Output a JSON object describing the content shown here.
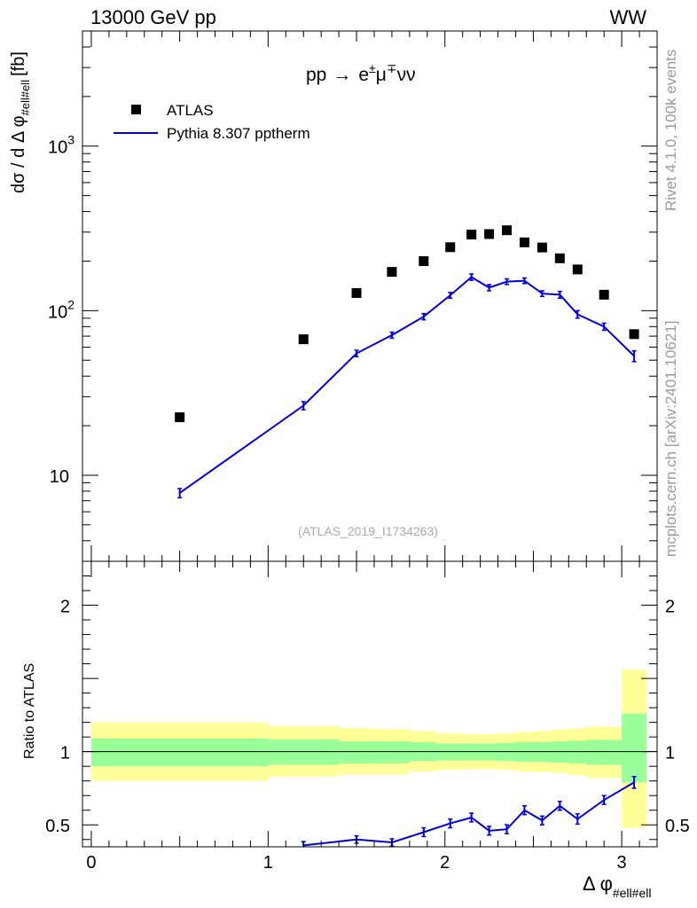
{
  "header": {
    "energy": "13000 GeV pp",
    "process_tag": "WW"
  },
  "side_text": {
    "rivet": "Rivet 4.1.0,  100k events",
    "mcplots": "mcplots.cern.ch [arXiv:2401.10621]"
  },
  "chart_data": [
    {
      "type": "scatter",
      "title": "pp → e±μ∓νν",
      "title_parts": {
        "lhs": "pp",
        "arrow": "→",
        "e": "e",
        "pm": "±",
        "mu": "μ",
        "mp": "∓",
        "nunu": "νν"
      },
      "ylabel": "dσ / d Δ φ",
      "ylabel_sub": "#ell#ell",
      "ylabel_unit": "[fb]",
      "yscale": "log",
      "ylim": [
        3,
        5000
      ],
      "xlim": [
        -0.05,
        3.2
      ],
      "yticks": [
        {
          "value": 10,
          "label": "10"
        },
        {
          "value": 100,
          "label": "10",
          "exp": "2"
        },
        {
          "value": 1000,
          "label": "10",
          "exp": "3"
        }
      ],
      "watermark": "(ATLAS_2019_I1734263)",
      "series": [
        {
          "name": "ATLAS",
          "style": "markers",
          "color": "#000000",
          "x": [
            0.5,
            1.2,
            1.5,
            1.7,
            1.88,
            2.03,
            2.15,
            2.25,
            2.35,
            2.45,
            2.55,
            2.65,
            2.75,
            2.9,
            3.07
          ],
          "values": [
            22.5,
            67,
            128,
            172,
            200,
            243,
            290,
            292,
            308,
            260,
            242,
            208,
            178,
            125,
            72
          ]
        },
        {
          "name": "Pythia 8.307 pptherm",
          "style": "line",
          "color": "#0000dd",
          "x": [
            0.5,
            1.2,
            1.5,
            1.7,
            1.88,
            2.03,
            2.15,
            2.25,
            2.35,
            2.45,
            2.55,
            2.65,
            2.75,
            2.9,
            3.07
          ],
          "values": [
            7.8,
            26.5,
            55,
            71,
            92,
            124,
            160,
            138,
            150,
            152,
            127,
            125,
            95,
            80,
            53
          ],
          "errors": [
            0.5,
            1.5,
            2.5,
            3,
            4,
            5,
            7,
            6,
            6,
            6,
            5,
            6,
            5,
            4,
            4
          ]
        }
      ]
    },
    {
      "type": "line",
      "ylabel": "Ratio to ATLAS",
      "xlabel": "Δ φ",
      "xlabel_sub": "#ell#ell",
      "ylim": [
        0.35,
        2.3
      ],
      "xlim": [
        -0.05,
        3.2
      ],
      "reference": 1,
      "yticks": [
        {
          "value": 0.5,
          "label": "0.5"
        },
        {
          "value": 1,
          "label": "1"
        },
        {
          "value": 2,
          "label": "2"
        }
      ],
      "xticks": [
        {
          "value": 0,
          "label": "0"
        },
        {
          "value": 1,
          "label": "1"
        },
        {
          "value": 2,
          "label": "2"
        },
        {
          "value": 3,
          "label": "3"
        }
      ],
      "uncertainty_bands": [
        {
          "name": "1-sigma",
          "color": "#99ff99",
          "bins": [
            [
              0,
              1,
              0.9,
              1.09
            ],
            [
              1,
              1.4,
              0.91,
              1.085
            ],
            [
              1.4,
              1.6,
              0.92,
              1.07
            ],
            [
              1.6,
              1.8,
              0.92,
              1.07
            ],
            [
              1.8,
              1.95,
              0.935,
              1.065
            ],
            [
              1.95,
              2.1,
              0.94,
              1.055
            ],
            [
              2.1,
              2.2,
              0.94,
              1.055
            ],
            [
              2.2,
              2.3,
              0.94,
              1.055
            ],
            [
              2.3,
              2.4,
              0.935,
              1.06
            ],
            [
              2.4,
              2.5,
              0.93,
              1.065
            ],
            [
              2.5,
              2.6,
              0.93,
              1.065
            ],
            [
              2.6,
              2.7,
              0.925,
              1.07
            ],
            [
              2.7,
              2.8,
              0.92,
              1.075
            ],
            [
              2.8,
              3.0,
              0.91,
              1.08
            ],
            [
              3.0,
              3.14,
              0.79,
              1.26
            ]
          ]
        },
        {
          "name": "2-sigma",
          "color": "#ffff99",
          "bins": [
            [
              0,
              1,
              0.8,
              1.2
            ],
            [
              1,
              1.4,
              0.83,
              1.175
            ],
            [
              1.4,
              1.6,
              0.845,
              1.16
            ],
            [
              1.6,
              1.8,
              0.845,
              1.155
            ],
            [
              1.8,
              1.95,
              0.865,
              1.14
            ],
            [
              1.95,
              2.1,
              0.875,
              1.125
            ],
            [
              2.1,
              2.2,
              0.88,
              1.12
            ],
            [
              2.2,
              2.3,
              0.88,
              1.12
            ],
            [
              2.3,
              2.4,
              0.875,
              1.125
            ],
            [
              2.4,
              2.5,
              0.865,
              1.135
            ],
            [
              2.5,
              2.6,
              0.86,
              1.14
            ],
            [
              2.6,
              2.7,
              0.855,
              1.15
            ],
            [
              2.7,
              2.8,
              0.84,
              1.16
            ],
            [
              2.8,
              3.0,
              0.82,
              1.17
            ],
            [
              3.0,
              3.14,
              0.48,
              1.56
            ]
          ]
        }
      ],
      "series": [
        {
          "name": "Pythia 8.307 pptherm / ATLAS",
          "color": "#0000dd",
          "x": [
            1.2,
            1.5,
            1.7,
            1.88,
            2.03,
            2.15,
            2.25,
            2.35,
            2.45,
            2.55,
            2.65,
            2.75,
            2.9,
            3.07
          ],
          "values": [
            0.36,
            0.4,
            0.38,
            0.45,
            0.51,
            0.55,
            0.46,
            0.47,
            0.6,
            0.53,
            0.63,
            0.54,
            0.67,
            0.79
          ],
          "errors": [
            0.025,
            0.025,
            0.025,
            0.03,
            0.03,
            0.03,
            0.03,
            0.03,
            0.03,
            0.03,
            0.03,
            0.035,
            0.03,
            0.04
          ]
        }
      ]
    }
  ]
}
